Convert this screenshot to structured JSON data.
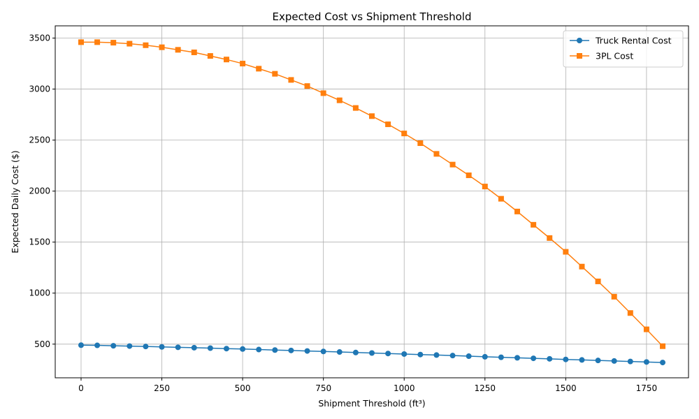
{
  "chart_data": {
    "type": "line",
    "title": "Expected Cost vs Shipment Threshold",
    "xlabel": "Shipment Threshold (ft³)",
    "ylabel": "Expected Daily Cost ($)",
    "xlim": [
      -80,
      1880
    ],
    "ylim": [
      170,
      3620
    ],
    "xticks": [
      0,
      250,
      500,
      750,
      1000,
      1250,
      1500,
      1750
    ],
    "yticks": [
      500,
      1000,
      1500,
      2000,
      2500,
      3000,
      3500
    ],
    "grid": true,
    "legend_position": "top-right",
    "x": [
      0,
      50,
      100,
      150,
      200,
      250,
      300,
      350,
      400,
      450,
      500,
      550,
      600,
      650,
      700,
      750,
      800,
      850,
      900,
      950,
      1000,
      1050,
      1100,
      1150,
      1200,
      1250,
      1300,
      1350,
      1400,
      1450,
      1500,
      1550,
      1600,
      1650,
      1700,
      1750,
      1800
    ],
    "series": [
      {
        "name": "Truck Rental Cost",
        "color": "#1f77b4",
        "marker": "circle",
        "values": [
          490,
          488,
          484,
          481,
          477,
          473,
          469,
          465,
          461,
          456,
          452,
          447,
          442,
          438,
          433,
          428,
          423,
          418,
          413,
          408,
          403,
          398,
          393,
          388,
          382,
          376,
          371,
          366,
          361,
          356,
          350,
          345,
          340,
          335,
          330,
          325,
          320
        ]
      },
      {
        "name": "3PL Cost",
        "color": "#ff7f0e",
        "marker": "square",
        "values": [
          3460,
          3460,
          3455,
          3445,
          3430,
          3410,
          3385,
          3360,
          3325,
          3290,
          3250,
          3200,
          3150,
          3090,
          3030,
          2960,
          2890,
          2815,
          2735,
          2655,
          2565,
          2470,
          2365,
          2260,
          2155,
          2045,
          1925,
          1800,
          1670,
          1540,
          1405,
          1260,
          1115,
          965,
          805,
          645,
          480
        ]
      }
    ]
  }
}
